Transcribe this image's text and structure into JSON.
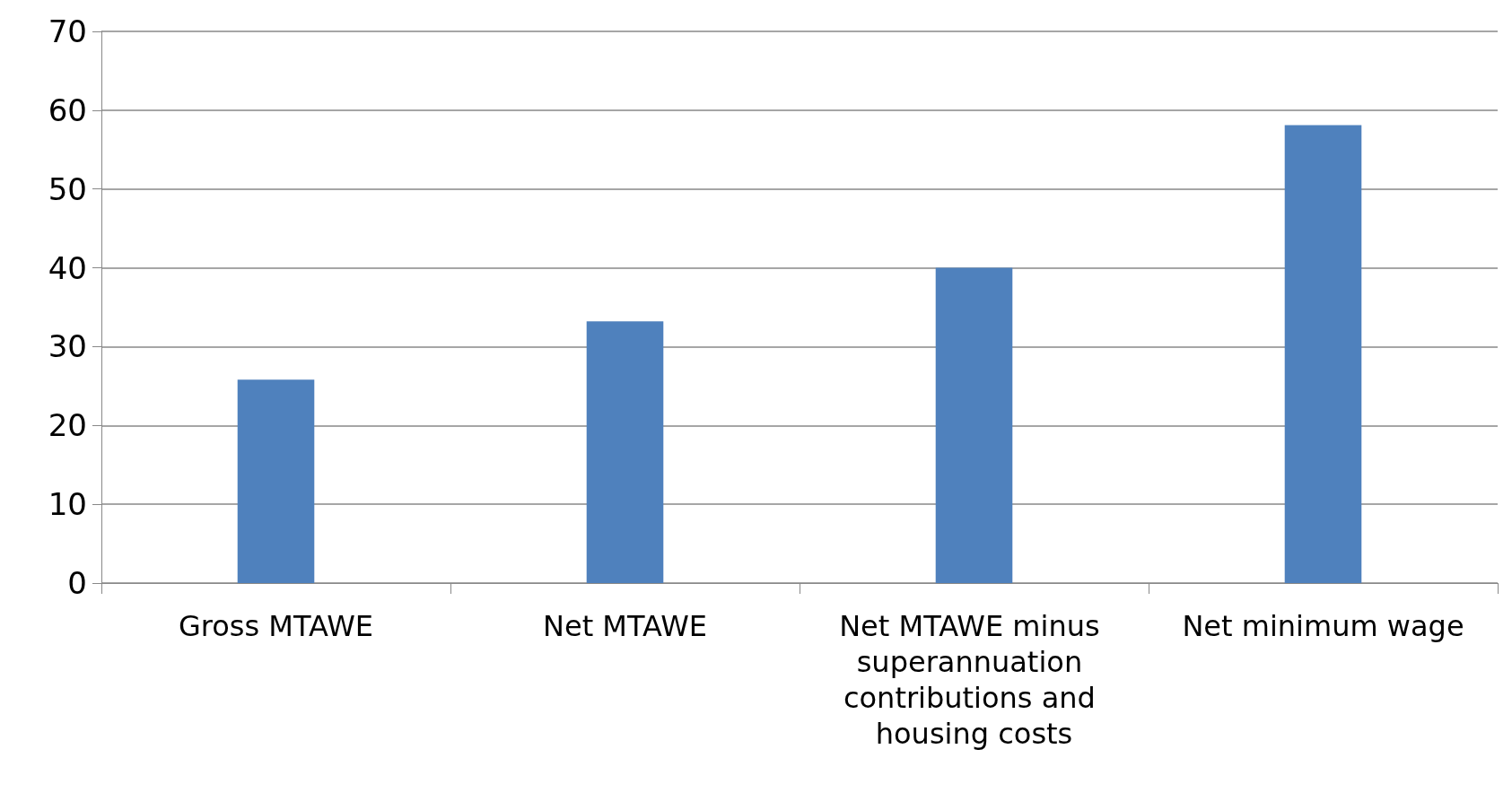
{
  "chart_data": {
    "type": "bar",
    "categories": [
      "Gross MTAWE",
      "Net MTAWE",
      "Net MTAWE minus superannuation contributions and housing costs",
      "Net minimum wage"
    ],
    "values": [
      25.8,
      33.2,
      40,
      58.1
    ],
    "color": "#4f81bd",
    "ylim": [
      0,
      70
    ],
    "yticks": [
      0,
      10,
      20,
      30,
      40,
      50,
      60,
      70
    ],
    "grid": "y"
  }
}
